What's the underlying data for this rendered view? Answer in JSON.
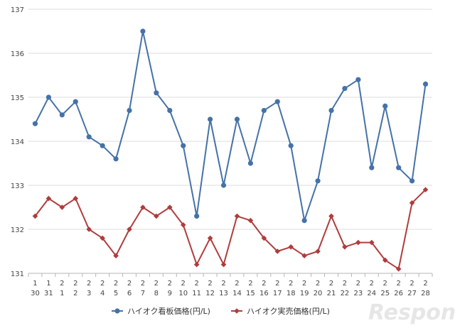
{
  "chart_data": {
    "type": "line",
    "title": "",
    "xlabel": "",
    "ylabel": "",
    "ylim": [
      131,
      137
    ],
    "yticks": [
      131,
      132,
      133,
      134,
      135,
      136,
      137
    ],
    "grid": "horizontal",
    "legend_position": "bottom",
    "categories": [
      {
        "month": "1",
        "day": "30"
      },
      {
        "month": "1",
        "day": "31"
      },
      {
        "month": "2",
        "day": "1"
      },
      {
        "month": "2",
        "day": "2"
      },
      {
        "month": "2",
        "day": "3"
      },
      {
        "month": "2",
        "day": "4"
      },
      {
        "month": "2",
        "day": "5"
      },
      {
        "month": "2",
        "day": "6"
      },
      {
        "month": "2",
        "day": "7"
      },
      {
        "month": "2",
        "day": "8"
      },
      {
        "month": "2",
        "day": "9"
      },
      {
        "month": "2",
        "day": "10"
      },
      {
        "month": "2",
        "day": "11"
      },
      {
        "month": "2",
        "day": "12"
      },
      {
        "month": "2",
        "day": "13"
      },
      {
        "month": "2",
        "day": "14"
      },
      {
        "month": "2",
        "day": "15"
      },
      {
        "month": "2",
        "day": "16"
      },
      {
        "month": "2",
        "day": "17"
      },
      {
        "month": "2",
        "day": "18"
      },
      {
        "month": "2",
        "day": "19"
      },
      {
        "month": "2",
        "day": "20"
      },
      {
        "month": "2",
        "day": "21"
      },
      {
        "month": "2",
        "day": "22"
      },
      {
        "month": "2",
        "day": "23"
      },
      {
        "month": "2",
        "day": "24"
      },
      {
        "month": "2",
        "day": "25"
      },
      {
        "month": "2",
        "day": "26"
      },
      {
        "month": "2",
        "day": "27"
      },
      {
        "month": "2",
        "day": "28"
      }
    ],
    "series": [
      {
        "name": "ハイオク看板価格(円/L)",
        "color": "#4472a8",
        "marker": "circle",
        "values": [
          134.4,
          135.0,
          134.6,
          134.9,
          134.1,
          133.9,
          133.6,
          134.7,
          136.5,
          135.1,
          134.7,
          133.9,
          132.3,
          134.5,
          133.0,
          134.5,
          133.5,
          134.7,
          134.9,
          133.9,
          132.2,
          133.1,
          134.7,
          135.2,
          135.4,
          133.4,
          134.8,
          133.4,
          133.1,
          135.3
        ]
      },
      {
        "name": "ハイオク実売価格(円/L)",
        "color": "#b03c3c",
        "marker": "diamond",
        "values": [
          132.3,
          132.7,
          132.5,
          132.7,
          132.0,
          131.8,
          131.4,
          132.0,
          132.5,
          132.3,
          132.5,
          132.1,
          131.2,
          131.8,
          131.2,
          132.3,
          132.2,
          131.8,
          131.5,
          131.6,
          131.4,
          131.5,
          132.3,
          131.6,
          131.7,
          131.7,
          131.3,
          131.1,
          132.6,
          132.9
        ]
      }
    ]
  },
  "watermark": "Response."
}
